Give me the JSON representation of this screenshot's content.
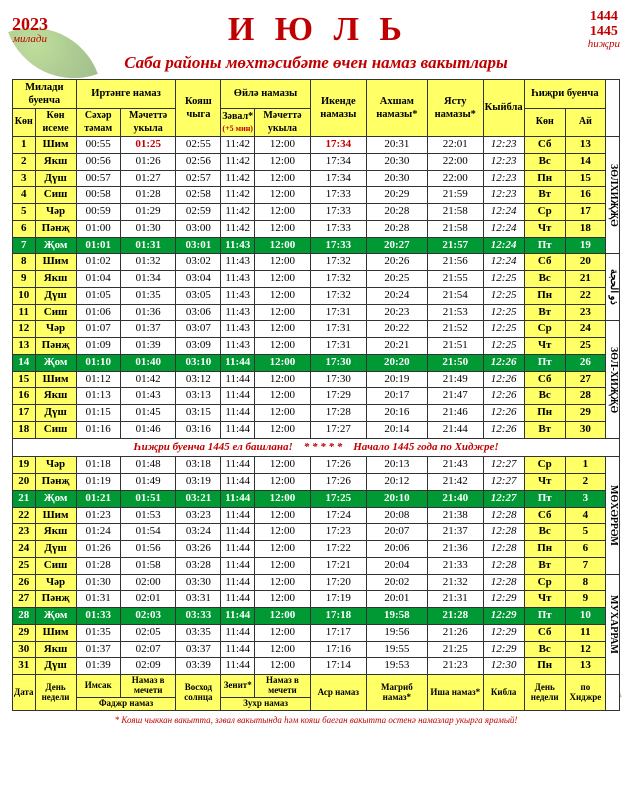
{
  "header": {
    "year_left": "2023",
    "year_left_sub": "милади",
    "title": "И Ю Л Ь",
    "year_right_1": "1444",
    "year_right_2": "1445",
    "year_right_sub": "һиҗри"
  },
  "subtitle": "Саба районы мөхтәсибәте өчен намаз вакытлары",
  "columns": {
    "grp_miladi": "Милади буенча",
    "grp_fajr": "Иртәнге намаз",
    "grp_zuhr": "Өйлә намазы",
    "grp_hijri": "Һиҗри буенча",
    "day": "Көн",
    "dow": "Көн исеме",
    "sahar": "Сәхәр тәмам",
    "mechet1": "Мәчеттә укыла",
    "sunrise": "Кояш чыга",
    "zaval": "Зәвал*",
    "zaval_sub": "(+5 мин)",
    "mechet2": "Мәчеттә укыла",
    "asr": "Икенде намазы",
    "maghrib": "Ахшам намазы*",
    "isha": "Ясту намазы*",
    "kibla": "Кыйбла",
    "hdow": "Көн",
    "hday": "Ай"
  },
  "side_labels": [
    "ЗӨЛХИҖҖӘ",
    "",
    "ЗӨЛ-ХИҖҖӘ",
    "МӨХӘРРӘМ",
    "МУХАРРАМ"
  ],
  "side_small": "ذو الحجة",
  "rows": [
    {
      "d": 1,
      "dow": "Шим",
      "r": [
        "00:55",
        "01:25",
        "02:55",
        "11:42",
        "12:00",
        "17:34",
        "20:31",
        "22:01",
        "12:23"
      ],
      "hd": "Сб",
      "hn": 13,
      "f": false,
      "red1": true,
      "red5": true
    },
    {
      "d": 2,
      "dow": "Якш",
      "r": [
        "00:56",
        "01:26",
        "02:56",
        "11:42",
        "12:00",
        "17:34",
        "20:30",
        "22:00",
        "12:23"
      ],
      "hd": "Вс",
      "hn": 14,
      "f": false
    },
    {
      "d": 3,
      "dow": "Дүш",
      "r": [
        "00:57",
        "01:27",
        "02:57",
        "11:42",
        "12:00",
        "17:34",
        "20:30",
        "22:00",
        "12:23"
      ],
      "hd": "Пн",
      "hn": 15,
      "f": false
    },
    {
      "d": 4,
      "dow": "Сиш",
      "r": [
        "00:58",
        "01:28",
        "02:58",
        "11:42",
        "12:00",
        "17:33",
        "20:29",
        "21:59",
        "12:23"
      ],
      "hd": "Вт",
      "hn": 16,
      "f": false
    },
    {
      "d": 5,
      "dow": "Чәр",
      "r": [
        "00:59",
        "01:29",
        "02:59",
        "11:42",
        "12:00",
        "17:33",
        "20:28",
        "21:58",
        "12:24"
      ],
      "hd": "Ср",
      "hn": 17,
      "f": false
    },
    {
      "d": 6,
      "dow": "Пәнҗ",
      "r": [
        "01:00",
        "01:30",
        "03:00",
        "11:42",
        "12:00",
        "17:33",
        "20:28",
        "21:58",
        "12:24"
      ],
      "hd": "Чт",
      "hn": 18,
      "f": false
    },
    {
      "d": 7,
      "dow": "Җом",
      "r": [
        "01:01",
        "01:31",
        "03:01",
        "11:43",
        "12:00",
        "17:33",
        "20:27",
        "21:57",
        "12:24"
      ],
      "hd": "Пт",
      "hn": 19,
      "f": true
    },
    {
      "d": 8,
      "dow": "Шим",
      "r": [
        "01:02",
        "01:32",
        "03:02",
        "11:43",
        "12:00",
        "17:32",
        "20:26",
        "21:56",
        "12:24"
      ],
      "hd": "Сб",
      "hn": 20,
      "f": false
    },
    {
      "d": 9,
      "dow": "Якш",
      "r": [
        "01:04",
        "01:34",
        "03:04",
        "11:43",
        "12:00",
        "17:32",
        "20:25",
        "21:55",
        "12:25"
      ],
      "hd": "Вс",
      "hn": 21,
      "f": false
    },
    {
      "d": 10,
      "dow": "Дүш",
      "r": [
        "01:05",
        "01:35",
        "03:05",
        "11:43",
        "12:00",
        "17:32",
        "20:24",
        "21:54",
        "12:25"
      ],
      "hd": "Пн",
      "hn": 22,
      "f": false
    },
    {
      "d": 11,
      "dow": "Сиш",
      "r": [
        "01:06",
        "01:36",
        "03:06",
        "11:43",
        "12:00",
        "17:31",
        "20:23",
        "21:53",
        "12:25"
      ],
      "hd": "Вт",
      "hn": 23,
      "f": false
    },
    {
      "d": 12,
      "dow": "Чәр",
      "r": [
        "01:07",
        "01:37",
        "03:07",
        "11:43",
        "12:00",
        "17:31",
        "20:22",
        "21:52",
        "12:25"
      ],
      "hd": "Ср",
      "hn": 24,
      "f": false
    },
    {
      "d": 13,
      "dow": "Пәнҗ",
      "r": [
        "01:09",
        "01:39",
        "03:09",
        "11:43",
        "12:00",
        "17:31",
        "20:21",
        "21:51",
        "12:25"
      ],
      "hd": "Чт",
      "hn": 25,
      "f": false
    },
    {
      "d": 14,
      "dow": "Җом",
      "r": [
        "01:10",
        "01:40",
        "03:10",
        "11:44",
        "12:00",
        "17:30",
        "20:20",
        "21:50",
        "12:26"
      ],
      "hd": "Пт",
      "hn": 26,
      "f": true
    },
    {
      "d": 15,
      "dow": "Шим",
      "r": [
        "01:12",
        "01:42",
        "03:12",
        "11:44",
        "12:00",
        "17:30",
        "20:19",
        "21:49",
        "12:26"
      ],
      "hd": "Сб",
      "hn": 27,
      "f": false
    },
    {
      "d": 16,
      "dow": "Якш",
      "r": [
        "01:13",
        "01:43",
        "03:13",
        "11:44",
        "12:00",
        "17:29",
        "20:17",
        "21:47",
        "12:26"
      ],
      "hd": "Вс",
      "hn": 28,
      "f": false
    },
    {
      "d": 17,
      "dow": "Дүш",
      "r": [
        "01:15",
        "01:45",
        "03:15",
        "11:44",
        "12:00",
        "17:28",
        "20:16",
        "21:46",
        "12:26"
      ],
      "hd": "Пн",
      "hn": 29,
      "f": false
    },
    {
      "d": 18,
      "dow": "Сиш",
      "r": [
        "01:16",
        "01:46",
        "03:16",
        "11:44",
        "12:00",
        "17:27",
        "20:14",
        "21:44",
        "12:26"
      ],
      "hd": "Вт",
      "hn": 30,
      "f": false
    }
  ],
  "midnote_left": "Һиҗри буенча 1445 ел башлана!",
  "midnote_sep": "* * * * *",
  "midnote_right": "Начало 1445 года по Хиджре!",
  "rows2": [
    {
      "d": 19,
      "dow": "Чәр",
      "r": [
        "01:18",
        "01:48",
        "03:18",
        "11:44",
        "12:00",
        "17:26",
        "20:13",
        "21:43",
        "12:27"
      ],
      "hd": "Ср",
      "hn": 1,
      "f": false
    },
    {
      "d": 20,
      "dow": "Пәнҗ",
      "r": [
        "01:19",
        "01:49",
        "03:19",
        "11:44",
        "12:00",
        "17:26",
        "20:12",
        "21:42",
        "12:27"
      ],
      "hd": "Чт",
      "hn": 2,
      "f": false
    },
    {
      "d": 21,
      "dow": "Җом",
      "r": [
        "01:21",
        "01:51",
        "03:21",
        "11:44",
        "12:00",
        "17:25",
        "20:10",
        "21:40",
        "12:27"
      ],
      "hd": "Пт",
      "hn": 3,
      "f": true
    },
    {
      "d": 22,
      "dow": "Шим",
      "r": [
        "01:23",
        "01:53",
        "03:23",
        "11:44",
        "12:00",
        "17:24",
        "20:08",
        "21:38",
        "12:28"
      ],
      "hd": "Сб",
      "hn": 4,
      "f": false
    },
    {
      "d": 23,
      "dow": "Якш",
      "r": [
        "01:24",
        "01:54",
        "03:24",
        "11:44",
        "12:00",
        "17:23",
        "20:07",
        "21:37",
        "12:28"
      ],
      "hd": "Вс",
      "hn": 5,
      "f": false
    },
    {
      "d": 24,
      "dow": "Дүш",
      "r": [
        "01:26",
        "01:56",
        "03:26",
        "11:44",
        "12:00",
        "17:22",
        "20:06",
        "21:36",
        "12:28"
      ],
      "hd": "Пн",
      "hn": 6,
      "f": false
    },
    {
      "d": 25,
      "dow": "Сиш",
      "r": [
        "01:28",
        "01:58",
        "03:28",
        "11:44",
        "12:00",
        "17:21",
        "20:04",
        "21:33",
        "12:28"
      ],
      "hd": "Вт",
      "hn": 7,
      "f": false
    },
    {
      "d": 26,
      "dow": "Чәр",
      "r": [
        "01:30",
        "02:00",
        "03:30",
        "11:44",
        "12:00",
        "17:20",
        "20:02",
        "21:32",
        "12:28"
      ],
      "hd": "Ср",
      "hn": 8,
      "f": false
    },
    {
      "d": 27,
      "dow": "Пәнҗ",
      "r": [
        "01:31",
        "02:01",
        "03:31",
        "11:44",
        "12:00",
        "17:19",
        "20:01",
        "21:31",
        "12:29"
      ],
      "hd": "Чт",
      "hn": 9,
      "f": false
    },
    {
      "d": 28,
      "dow": "Җом",
      "r": [
        "01:33",
        "02:03",
        "03:33",
        "11:44",
        "12:00",
        "17:18",
        "19:58",
        "21:28",
        "12:29"
      ],
      "hd": "Пт",
      "hn": 10,
      "f": true
    },
    {
      "d": 29,
      "dow": "Шим",
      "r": [
        "01:35",
        "02:05",
        "03:35",
        "11:44",
        "12:00",
        "17:17",
        "19:56",
        "21:26",
        "12:29"
      ],
      "hd": "Сб",
      "hn": 11,
      "f": false
    },
    {
      "d": 30,
      "dow": "Якш",
      "r": [
        "01:37",
        "02:07",
        "03:37",
        "11:44",
        "12:00",
        "17:16",
        "19:55",
        "21:25",
        "12:29"
      ],
      "hd": "Вс",
      "hn": 12,
      "f": false
    },
    {
      "d": 31,
      "dow": "Дүш",
      "r": [
        "01:39",
        "02:09",
        "03:39",
        "11:44",
        "12:00",
        "17:14",
        "19:53",
        "21:23",
        "12:30"
      ],
      "hd": "Пн",
      "hn": 13,
      "f": false
    }
  ],
  "footer": {
    "c1": "Дата",
    "c2": "День недели",
    "c3": "Имсак",
    "c4": "Намаз в мечети",
    "c5": "Восход солнца",
    "c6": "Зенит*",
    "c7": "Намаз в мечети",
    "c8": "Аср намаз",
    "c9": "Магриб намаз*",
    "c10": "Иша намаз*",
    "c11": "Кибла",
    "c12": "День недели",
    "c13": "по Хиджре",
    "g1": "Фаджр намаз",
    "g2": "Зухр намаз"
  },
  "footnote": "* Кояш чыккан вакытта, зәвал вакытында һәм кояш баеган вакытта остенә намазлар укырга ярамый!"
}
